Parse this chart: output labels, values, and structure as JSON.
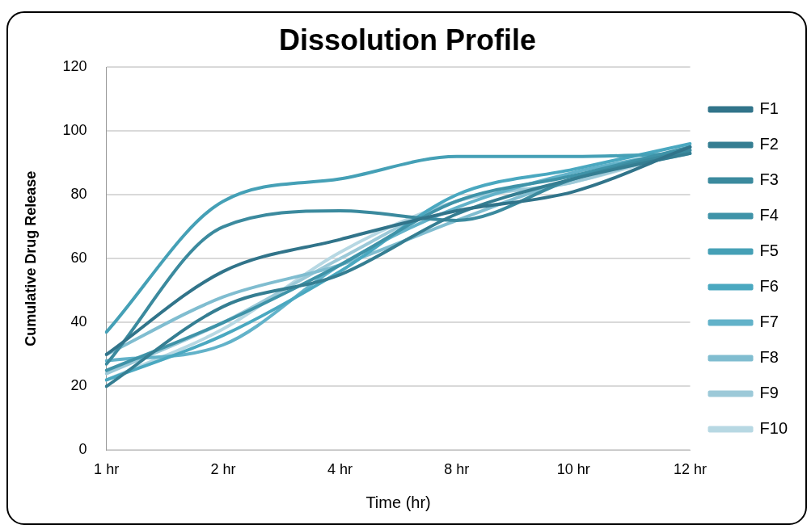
{
  "chart_data": {
    "type": "line",
    "title": "Dissolution Profile",
    "xlabel": "Time (hr)",
    "ylabel": "Cumulative Drug Release",
    "categories": [
      "1 hr",
      "2 hr",
      "4 hr",
      "8 hr",
      "10 hr",
      "12 hr"
    ],
    "ylim": [
      0,
      120
    ],
    "yticks": [
      0,
      20,
      40,
      60,
      80,
      100,
      120
    ],
    "grid": "y",
    "legend": "right",
    "marker": "none",
    "line_style": "solid",
    "series": [
      {
        "name": "F1",
        "color": "#31748a",
        "values": [
          30,
          56,
          66,
          75,
          81,
          95
        ]
      },
      {
        "name": "F2",
        "color": "#357e92",
        "values": [
          20,
          45,
          55,
          74,
          85,
          93
        ]
      },
      {
        "name": "F3",
        "color": "#3b8a9e",
        "values": [
          27,
          70,
          75,
          72,
          85,
          94
        ]
      },
      {
        "name": "F4",
        "color": "#3f93a8",
        "values": [
          25,
          40,
          58,
          78,
          86,
          95
        ]
      },
      {
        "name": "F5",
        "color": "#45a0b6",
        "values": [
          37,
          78,
          85,
          92,
          92,
          93
        ]
      },
      {
        "name": "F6",
        "color": "#4aa8c0",
        "values": [
          22,
          36,
          56,
          80,
          88,
          96
        ]
      },
      {
        "name": "F7",
        "color": "#62b2c9",
        "values": [
          28,
          33,
          58,
          76,
          87,
          94
        ]
      },
      {
        "name": "F8",
        "color": "#80bdd0",
        "values": [
          30,
          48,
          58,
          72,
          85,
          93
        ]
      },
      {
        "name": "F9",
        "color": "#9cc9d8",
        "values": [
          24,
          40,
          60,
          78,
          84,
          95
        ]
      },
      {
        "name": "F10",
        "color": "#b7d8e3",
        "values": [
          22,
          38,
          62,
          78,
          84,
          94
        ]
      }
    ]
  }
}
